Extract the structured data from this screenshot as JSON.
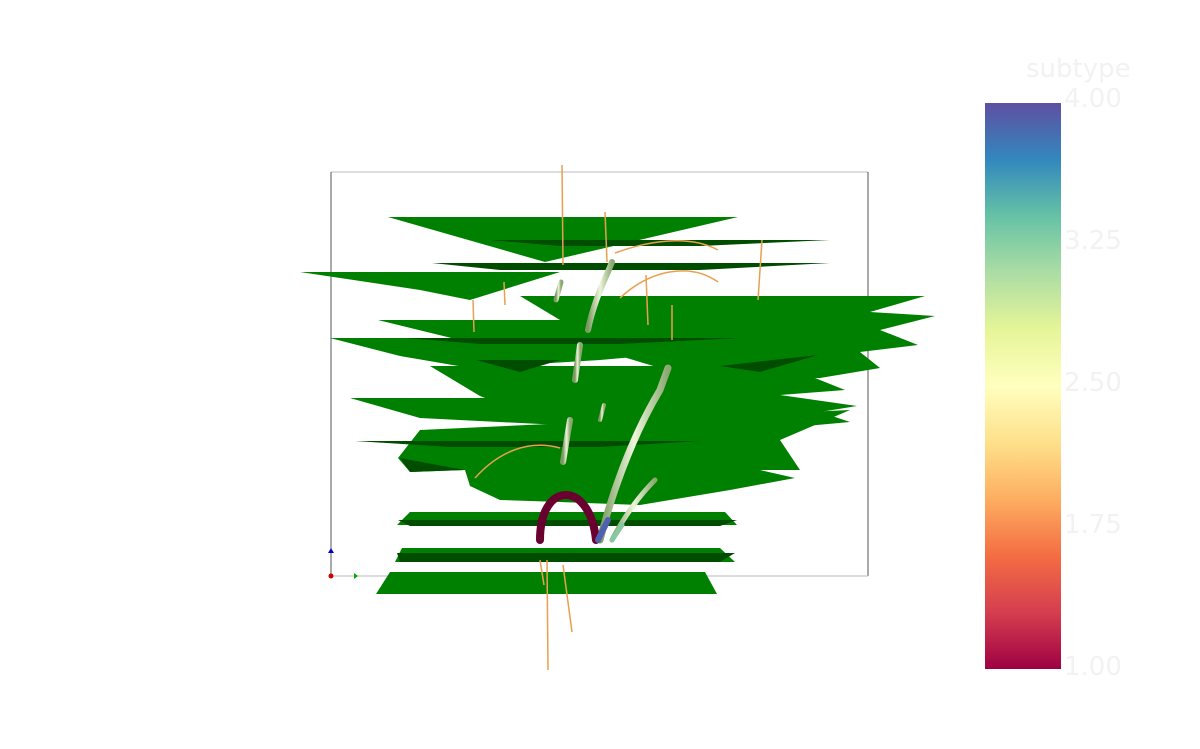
{
  "colorbar": {
    "title": "subtype",
    "ticks": [
      "4.00",
      "3.25",
      "2.50",
      "1.75",
      "1.00"
    ],
    "range": [
      1.0,
      4.0
    ],
    "colormap": "Spectral",
    "colors": [
      "#9e0142",
      "#d53e4f",
      "#f46d43",
      "#fdae61",
      "#fee08b",
      "#ffffbf",
      "#e6f598",
      "#abdda4",
      "#66c2a5",
      "#3288bd",
      "#5e4fa2"
    ]
  },
  "scene": {
    "leaf_color": "#008000",
    "dark_leaf_color": "#004d00",
    "stem_color": "#d8e6c0",
    "root_color": "#e8a050",
    "axes_colors": [
      "#cc0000",
      "#00aa00",
      "#0000cc"
    ]
  }
}
